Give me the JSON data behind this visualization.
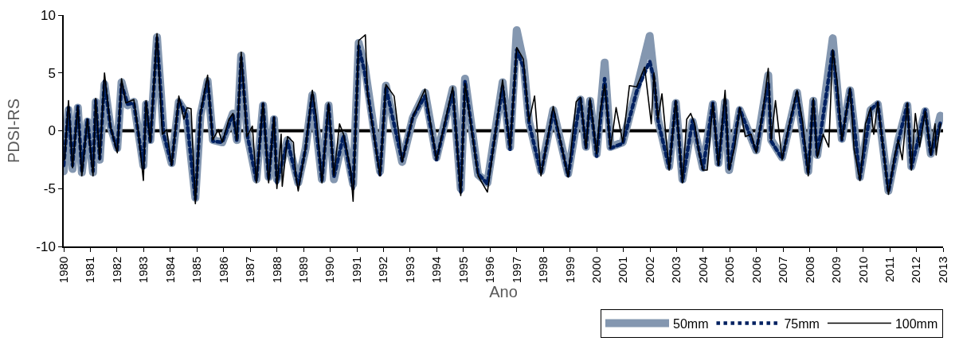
{
  "chart_data": {
    "type": "line",
    "xlabel": "Ano",
    "ylabel": "PDSI-RS",
    "xlim": [
      1980,
      2013
    ],
    "xticks": [
      1980,
      1981,
      1982,
      1983,
      1984,
      1985,
      1986,
      1987,
      1988,
      1989,
      1990,
      1991,
      1992,
      1993,
      1994,
      1995,
      1996,
      1997,
      1998,
      1999,
      2000,
      2001,
      2002,
      2003,
      2004,
      2005,
      2006,
      2007,
      2008,
      2009,
      2010,
      2011,
      2012,
      2013
    ],
    "ylim": [
      -10,
      10
    ],
    "yticks": [
      -10,
      -5,
      0,
      5,
      10
    ],
    "grid": false,
    "legend": "bottom right",
    "ref_lines": [
      {
        "axis": "y",
        "value": 0,
        "color": "#000000"
      }
    ],
    "series": [
      {
        "name": "50mm",
        "color": "#8497b0",
        "line_style": "solid",
        "x": [
          1980.0,
          1980.18,
          1980.33,
          1980.53,
          1980.68,
          1980.89,
          1981.1,
          1981.2,
          1981.35,
          1981.53,
          1981.75,
          1982.01,
          1982.17,
          1982.4,
          1982.63,
          1982.99,
          1983.09,
          1983.25,
          1983.5,
          1983.75,
          1984.05,
          1984.32,
          1984.6,
          1984.94,
          1985.13,
          1985.4,
          1985.6,
          1985.95,
          1986.35,
          1986.5,
          1986.66,
          1986.9,
          1987.23,
          1987.48,
          1987.69,
          1987.89,
          1988.0,
          1988.4,
          1988.8,
          1989.08,
          1989.33,
          1989.69,
          1989.94,
          1990.14,
          1990.5,
          1990.86,
          1991.07,
          1991.3,
          1991.87,
          1992.09,
          1992.7,
          1993.1,
          1993.56,
          1993.99,
          1994.6,
          1994.9,
          1995.06,
          1995.55,
          1995.9,
          1996.47,
          1996.75,
          1997.0,
          1997.25,
          1997.46,
          1997.91,
          1998.37,
          1998.93,
          1999.39,
          1999.6,
          1999.75,
          2000.0,
          2000.3,
          2000.52,
          2000.98,
          2001.5,
          2001.99,
          2002.15,
          2002.3,
          2002.72,
          2002.97,
          2003.22,
          2003.6,
          2003.99,
          2004.36,
          2004.57,
          2004.82,
          2004.97,
          2005.37,
          2005.99,
          2006.44,
          2006.55,
          2006.96,
          2007.52,
          2007.94,
          2008.13,
          2008.28,
          2008.86,
          2009.2,
          2009.51,
          2009.88,
          2010.28,
          2010.55,
          2010.95,
          2011.32,
          2011.66,
          2011.81,
          2012.33,
          2012.54,
          2012.9
        ],
        "values": [
          -3.5,
          1.8,
          -3.3,
          2.0,
          -3.6,
          0.8,
          -3.6,
          2.5,
          -2.5,
          4.0,
          0.4,
          -1.5,
          4.2,
          2.2,
          2.5,
          -3.0,
          2.3,
          -0.8,
          8.1,
          -0.2,
          -2.8,
          2.5,
          1.5,
          -5.8,
          1.3,
          4.3,
          -0.8,
          -1.0,
          1.5,
          -0.8,
          6.5,
          -0.5,
          -4.2,
          2.2,
          -4.0,
          1.0,
          -4.2,
          -0.8,
          -4.5,
          -1.5,
          3.1,
          -4.2,
          2.2,
          -4.2,
          -0.4,
          -4.6,
          7.6,
          5.5,
          -3.5,
          3.9,
          -2.7,
          1.1,
          3.3,
          -2.3,
          3.6,
          -5.0,
          4.5,
          -3.8,
          -4.5,
          4.2,
          -1.4,
          8.7,
          6.0,
          0.8,
          -3.5,
          1.8,
          -3.7,
          2.7,
          -1.4,
          2.6,
          -2.0,
          5.9,
          -1.4,
          -1.0,
          3.6,
          8.2,
          4.8,
          1.0,
          -3.1,
          2.4,
          -4.2,
          0.8,
          -3.2,
          2.3,
          -2.8,
          2.5,
          -3.4,
          1.8,
          -1.7,
          4.8,
          -0.8,
          -2.3,
          3.3,
          -3.5,
          2.6,
          -2.1,
          8.0,
          -0.7,
          3.5,
          -4.0,
          1.8,
          2.3,
          -5.2,
          -0.8,
          2.2,
          -3.1,
          1.7,
          -2.0,
          1.3
        ]
      },
      {
        "name": "75mm",
        "color": "#002060",
        "line_style": "dotted",
        "x": [
          1980.0,
          1980.18,
          1980.33,
          1980.53,
          1980.68,
          1980.89,
          1981.1,
          1981.2,
          1981.35,
          1981.53,
          1981.75,
          1982.01,
          1982.17,
          1982.4,
          1982.63,
          1982.99,
          1983.09,
          1983.25,
          1983.5,
          1983.75,
          1984.05,
          1984.32,
          1984.6,
          1984.94,
          1985.13,
          1985.4,
          1985.6,
          1985.95,
          1986.35,
          1986.5,
          1986.66,
          1986.9,
          1987.23,
          1987.48,
          1987.69,
          1987.89,
          1988.0,
          1988.4,
          1988.8,
          1989.08,
          1989.33,
          1989.69,
          1989.94,
          1990.14,
          1990.5,
          1990.86,
          1991.07,
          1991.3,
          1991.87,
          1992.09,
          1992.7,
          1993.1,
          1993.56,
          1993.99,
          1994.6,
          1994.9,
          1995.06,
          1995.55,
          1995.9,
          1996.47,
          1996.75,
          1997.0,
          1997.25,
          1997.46,
          1997.91,
          1998.37,
          1998.93,
          1999.39,
          1999.6,
          1999.75,
          2000.0,
          2000.3,
          2000.52,
          2000.98,
          2001.5,
          2001.99,
          2002.15,
          2002.3,
          2002.72,
          2002.97,
          2003.22,
          2003.6,
          2003.99,
          2004.36,
          2004.57,
          2004.82,
          2004.97,
          2005.37,
          2005.99,
          2006.44,
          2006.55,
          2006.96,
          2007.52,
          2007.94,
          2008.13,
          2008.28,
          2008.86,
          2009.2,
          2009.51,
          2009.88,
          2010.28,
          2010.55,
          2010.95,
          2011.32,
          2011.66,
          2011.81,
          2012.33,
          2012.54,
          2012.9
        ],
        "values": [
          -3.0,
          2.0,
          -3.0,
          2.1,
          -3.5,
          1.0,
          -3.5,
          2.6,
          -2.4,
          4.3,
          0.3,
          -1.7,
          4.0,
          2.3,
          2.4,
          -3.2,
          2.4,
          -1.0,
          8.0,
          -0.3,
          -2.9,
          2.6,
          1.4,
          -5.9,
          1.4,
          4.4,
          -0.9,
          -1.0,
          1.4,
          -0.9,
          6.3,
          -0.5,
          -4.3,
          2.3,
          -4.2,
          1.1,
          -4.5,
          -0.9,
          -4.7,
          -1.5,
          3.2,
          -4.3,
          2.3,
          -4.0,
          -0.4,
          -5.0,
          7.3,
          5.0,
          -3.8,
          3.8,
          -2.6,
          1.2,
          3.0,
          -2.5,
          3.4,
          -5.3,
          4.3,
          -3.7,
          -4.6,
          3.8,
          -1.6,
          7.0,
          5.5,
          0.7,
          -3.7,
          1.7,
          -3.9,
          2.8,
          -1.5,
          2.6,
          -2.2,
          4.5,
          -1.5,
          -1.1,
          3.4,
          6.0,
          4.5,
          0.9,
          -3.2,
          2.5,
          -4.4,
          0.9,
          -3.3,
          2.4,
          -2.9,
          2.6,
          -3.4,
          1.9,
          -1.8,
          4.2,
          -0.9,
          -2.4,
          3.3,
          -3.6,
          2.7,
          -2.2,
          7.0,
          -0.8,
          3.6,
          -4.1,
          1.8,
          2.4,
          -5.3,
          -0.9,
          2.3,
          -3.2,
          1.8,
          -2.1,
          0.7
        ]
      },
      {
        "name": "100mm",
        "color": "#000000",
        "line_style": "solid",
        "x": [
          1980.03,
          1980.18,
          1980.33,
          1980.53,
          1980.68,
          1980.89,
          1981.1,
          1981.2,
          1981.35,
          1981.53,
          1981.75,
          1982.01,
          1982.17,
          1982.33,
          1982.63,
          1982.79,
          1982.99,
          1983.09,
          1983.25,
          1983.5,
          1983.7,
          1983.86,
          1984.05,
          1984.32,
          1984.51,
          1984.63,
          1984.78,
          1984.94,
          1985.13,
          1985.4,
          1985.59,
          1985.8,
          1985.95,
          1986.2,
          1986.35,
          1986.5,
          1986.66,
          1986.87,
          1987.08,
          1987.23,
          1987.48,
          1987.69,
          1987.89,
          1988.0,
          1988.16,
          1988.2,
          1988.4,
          1988.62,
          1988.71,
          1988.8,
          1988.92,
          1989.08,
          1989.33,
          1989.48,
          1989.69,
          1989.94,
          1990.14,
          1990.35,
          1990.5,
          1990.77,
          1990.86,
          1991.07,
          1991.32,
          1991.4,
          1991.87,
          1992.09,
          1992.4,
          1992.7,
          1993.1,
          1993.56,
          1993.99,
          1994.6,
          1994.9,
          1995.06,
          1995.55,
          1995.9,
          1996.47,
          1996.75,
          1997.0,
          1997.25,
          1997.46,
          1997.67,
          1997.91,
          1998.37,
          1998.93,
          1999.23,
          1999.39,
          1999.6,
          1999.75,
          2000.0,
          2000.12,
          2000.3,
          2000.52,
          2000.73,
          2000.98,
          2001.23,
          2001.5,
          2001.8,
          2002.05,
          2002.15,
          2002.3,
          2002.45,
          2002.72,
          2002.97,
          2003.22,
          2003.38,
          2003.53,
          2003.68,
          2003.84,
          2003.99,
          2004.15,
          2004.36,
          2004.57,
          2004.82,
          2004.97,
          2005.18,
          2005.37,
          2005.58,
          2005.8,
          2005.99,
          2006.29,
          2006.44,
          2006.55,
          2006.71,
          2006.96,
          2007.21,
          2007.52,
          2007.73,
          2007.94,
          2008.13,
          2008.28,
          2008.5,
          2008.71,
          2008.86,
          2009.02,
          2009.2,
          2009.51,
          2009.66,
          2009.88,
          2010.09,
          2010.28,
          2010.4,
          2010.55,
          2010.8,
          2010.95,
          2011.17,
          2011.32,
          2011.47,
          2011.66,
          2011.81,
          2011.96,
          2012.12,
          2012.33,
          2012.54,
          2012.7,
          2012.74,
          2012.9
        ],
        "values": [
          -2.5,
          2.6,
          -3.2,
          2.1,
          -3.9,
          1.0,
          -3.9,
          2.8,
          -2.5,
          5.0,
          0.4,
          -1.9,
          4.5,
          2.4,
          2.7,
          0.1,
          -4.3,
          2.6,
          -1.0,
          8.4,
          -0.3,
          0.1,
          -3.0,
          3.0,
          1.0,
          2.0,
          1.9,
          -6.3,
          1.5,
          4.8,
          -0.8,
          0.1,
          -1.0,
          1.0,
          1.5,
          -0.8,
          6.8,
          -0.5,
          0.4,
          -4.5,
          2.4,
          -4.5,
          1.2,
          -5.0,
          -0.3,
          -4.8,
          -0.5,
          -1.0,
          -3.9,
          -5.2,
          -3.6,
          -1.4,
          3.5,
          1.2,
          -4.5,
          2.4,
          -3.9,
          0.6,
          -0.3,
          -3.4,
          -6.1,
          7.8,
          8.3,
          3.2,
          -3.9,
          4.0,
          3.0,
          -2.7,
          1.2,
          3.6,
          -2.5,
          3.8,
          -5.6,
          4.1,
          -3.9,
          -5.3,
          4.4,
          -1.5,
          7.2,
          6.2,
          0.8,
          3.0,
          -3.9,
          2.1,
          -4.0,
          2.5,
          2.9,
          -1.5,
          2.8,
          -2.0,
          1.5,
          4.0,
          -1.5,
          2.0,
          -1.0,
          3.9,
          3.8,
          5.5,
          0.6,
          5.0,
          1.0,
          3.2,
          -3.4,
          2.6,
          -4.5,
          1.0,
          1.5,
          0.6,
          -1.9,
          -3.4,
          -3.4,
          2.4,
          -3.0,
          3.5,
          -3.4,
          -1.4,
          2.0,
          -0.5,
          -0.3,
          -1.9,
          2.6,
          5.4,
          -0.8,
          2.6,
          -2.5,
          0.4,
          3.5,
          0.8,
          -3.9,
          2.8,
          -2.3,
          -0.3,
          -1.4,
          7.0,
          4.4,
          -0.8,
          3.7,
          -1.6,
          -4.3,
          0.6,
          2.0,
          -0.3,
          2.5,
          -2.5,
          -5.5,
          -2.3,
          -0.8,
          -2.5,
          2.4,
          -3.4,
          1.5,
          -1.4,
          1.7,
          -2.1,
          0.6,
          -2.1,
          0.6
        ]
      }
    ]
  }
}
